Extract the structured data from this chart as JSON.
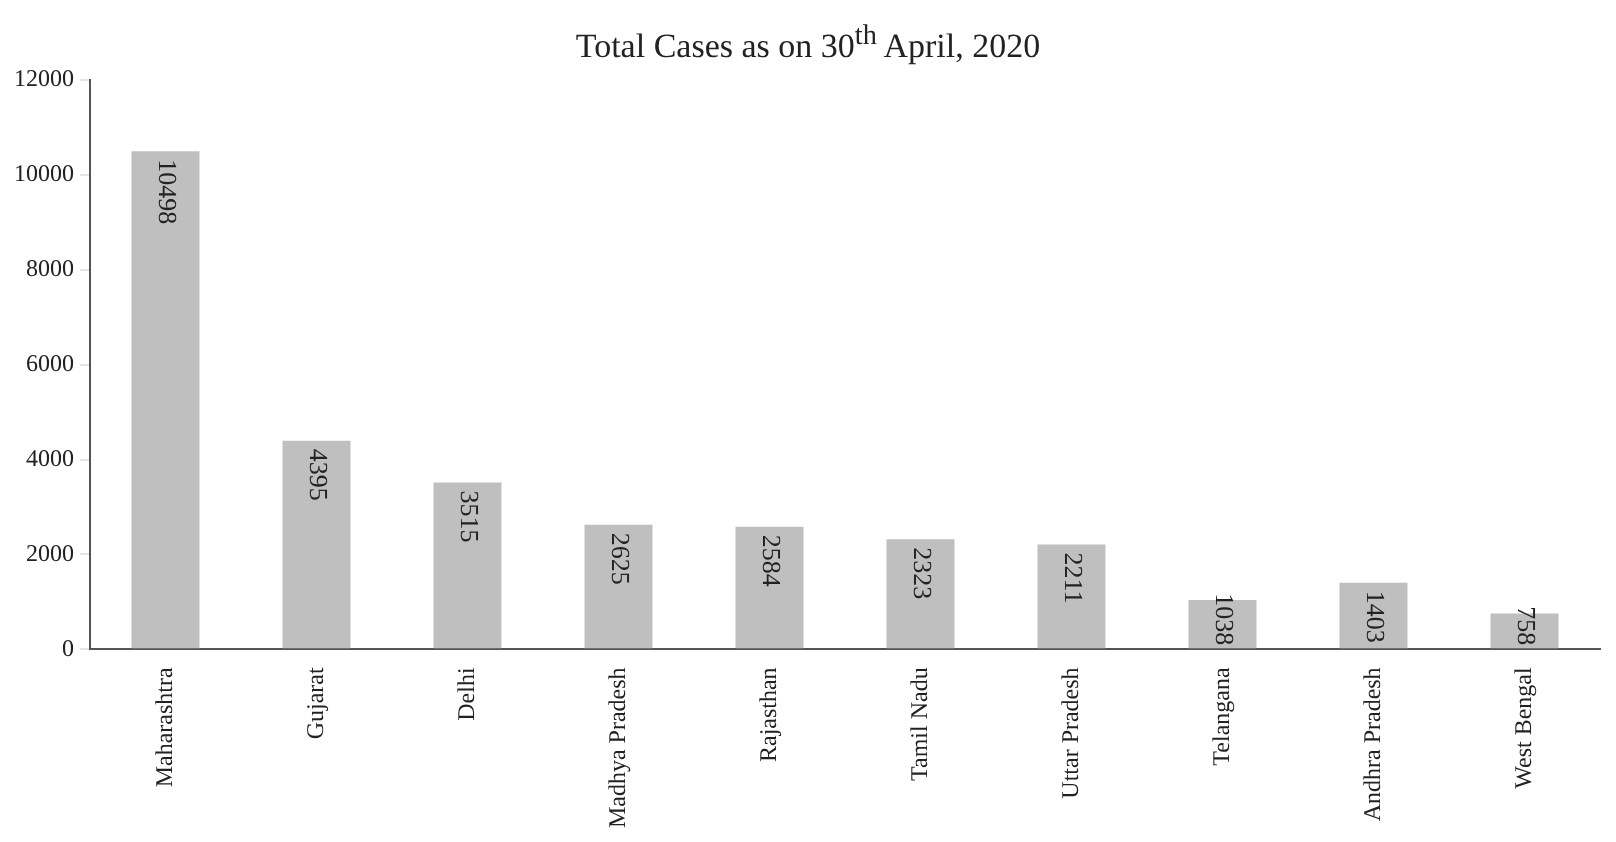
{
  "chart_data": {
    "type": "bar",
    "title": "Total Cases as on 30$^{th}$ April, 2020",
    "categories": [
      "Maharashtra",
      "Gujarat",
      "Delhi",
      "Madhya Pradesh",
      "Rajasthan",
      "Tamil Nadu",
      "Uttar Pradesh",
      "Telangana",
      "Andhra Pradesh",
      "West Bengal"
    ],
    "values": [
      10498,
      4395,
      3515,
      2625,
      2584,
      2323,
      2211,
      1038,
      1403,
      758
    ],
    "color": "#bfbfbf",
    "ylim": [
      0,
      12000
    ],
    "yticks": [
      0,
      2000,
      4000,
      6000,
      8000,
      10000,
      12000
    ],
    "grid": false,
    "legend": false,
    "data_labels": true
  }
}
